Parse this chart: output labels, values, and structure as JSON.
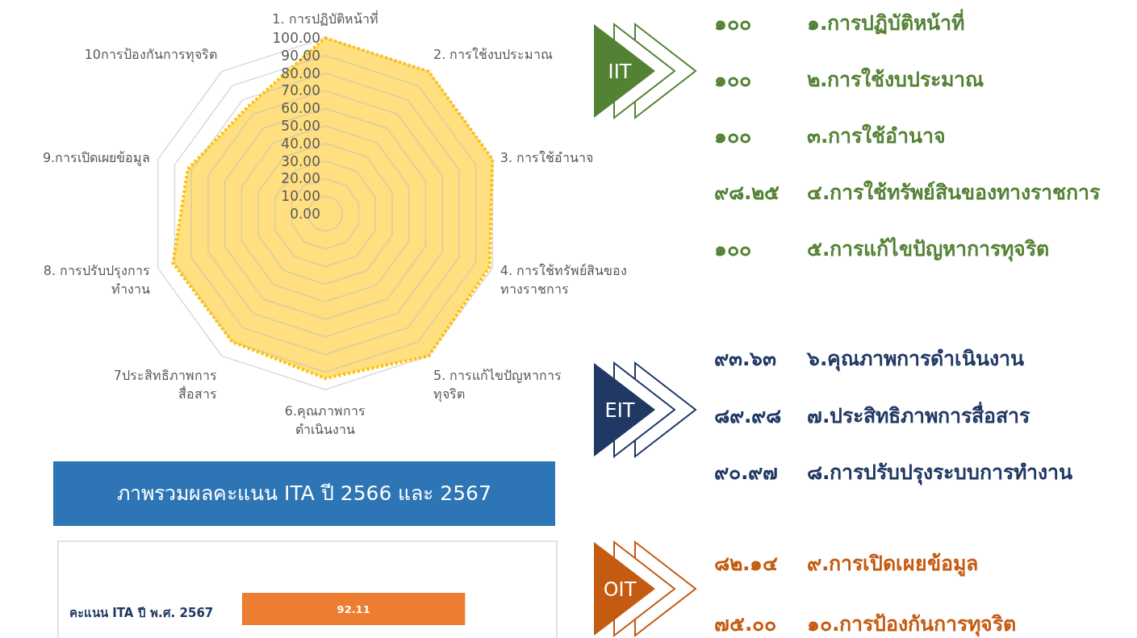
{
  "chart_data": [
    {
      "type": "radar",
      "categories": [
        "1. การปฏิบัติหน้าที่",
        "2. การใช้งบประมาณ",
        "3. การใช้อำนาจ",
        "4. การใช้ทรัพย์สินของ\nทางราชการ",
        "5. การแก้ไขปัญหาการ\nทุจริต",
        "6.คุณภาพการ\nดำเนินงาน",
        "7ประสิทธิภาพการ\nสื่อสาร",
        "8. การปรับปรุงการ\nทำงาน",
        "9.การเปิดเผยข้อมูล",
        "10การป้องกันการทุจริต"
      ],
      "series": [
        {
          "color": "#ffc000",
          "values": [
            100,
            100,
            100,
            98.25,
            100,
            93.63,
            89.98,
            90.97,
            82.14,
            75.0
          ]
        }
      ],
      "ylim": [
        0,
        100
      ],
      "yticks": [
        {
          "value": 0,
          "label": "0.00"
        },
        {
          "value": 10,
          "label": "10.00"
        },
        {
          "value": 20,
          "label": "20.00"
        },
        {
          "value": 30,
          "label": "30.00"
        },
        {
          "value": 40,
          "label": "40.00"
        },
        {
          "value": 50,
          "label": "50.00"
        },
        {
          "value": 60,
          "label": "60.00"
        },
        {
          "value": 70,
          "label": "70.00"
        },
        {
          "value": 80,
          "label": "80.00"
        },
        {
          "value": 90,
          "label": "90.00"
        },
        {
          "value": 100,
          "label": "100.00"
        }
      ],
      "grid": true,
      "line_style": "dotted"
    },
    {
      "type": "other",
      "annotations": [
        "IIT",
        "EIT",
        "OIT"
      ],
      "categories": [
        "๑.การปฏิบัติหน้าที่",
        "๒.การใช้งบประมาณ",
        "๓.การใช้อำนาจ",
        "๔.การใช้ทรัพย์สินของทางราชการ",
        "๕.การแก้ไขปัญหาการทุจริต",
        "๖.คุณภาพการดำเนินงาน",
        "๗.ประสิทธิภาพการสื่อสาร",
        "๘.การปรับปรุงระบบการทำงาน",
        "๙.การเปิดเผยข้อมูล",
        "๑๐.การป้องกันการทุจริต"
      ],
      "value_labels": [
        "๑๐๐",
        "๑๐๐",
        "๑๐๐",
        "๙๘.๒๕",
        "๑๐๐",
        "๙๓.๖๓",
        "๘๙.๙๘",
        "๙๐.๙๗",
        "๘๒.๑๔",
        "๗๕.๐๐"
      ],
      "colors": [
        "#548235",
        "#548235",
        "#548235",
        "#548235",
        "#548235",
        "#1f3864",
        "#1f3864",
        "#1f3864",
        "#c55a11",
        "#c55a11"
      ]
    },
    {
      "type": "bar",
      "orientation": "horizontal",
      "title": "ภาพรวมผลคะแนน  ITA ปี 2566 และ 2567",
      "categories": [
        "คะแนน ITA ปี พ.ศ. 2567"
      ],
      "values": [
        92.11
      ],
      "color": "#ed7d31",
      "data_labels": true
    }
  ]
}
